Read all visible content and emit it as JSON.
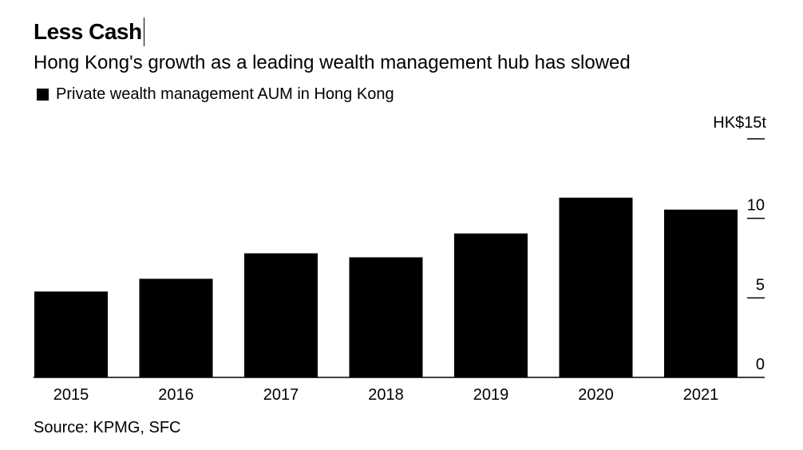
{
  "header": {
    "title": "Less Cash",
    "subtitle": "Hong Kong's growth as a leading wealth management hub has slowed"
  },
  "legend": {
    "label": "Private wealth management AUM in Hong Kong",
    "color": "#000000"
  },
  "source": "Source: KPMG, SFC",
  "chart_data": {
    "type": "bar",
    "categories": [
      "2015",
      "2016",
      "2017",
      "2018",
      "2019",
      "2020",
      "2021"
    ],
    "series": [
      {
        "name": "Private wealth management AUM in Hong Kong",
        "values": [
          5.4,
          6.2,
          7.8,
          7.55,
          9.05,
          11.3,
          10.55
        ],
        "color": "#000000"
      }
    ],
    "y_unit": "HK$15t",
    "y_ticks": [
      0,
      5,
      10,
      15
    ],
    "y_tick_labels": [
      "0",
      "5",
      "10",
      ""
    ],
    "ylim": [
      0,
      15
    ],
    "grid": false,
    "legend_position": "top-left",
    "y_axis_side": "right"
  }
}
